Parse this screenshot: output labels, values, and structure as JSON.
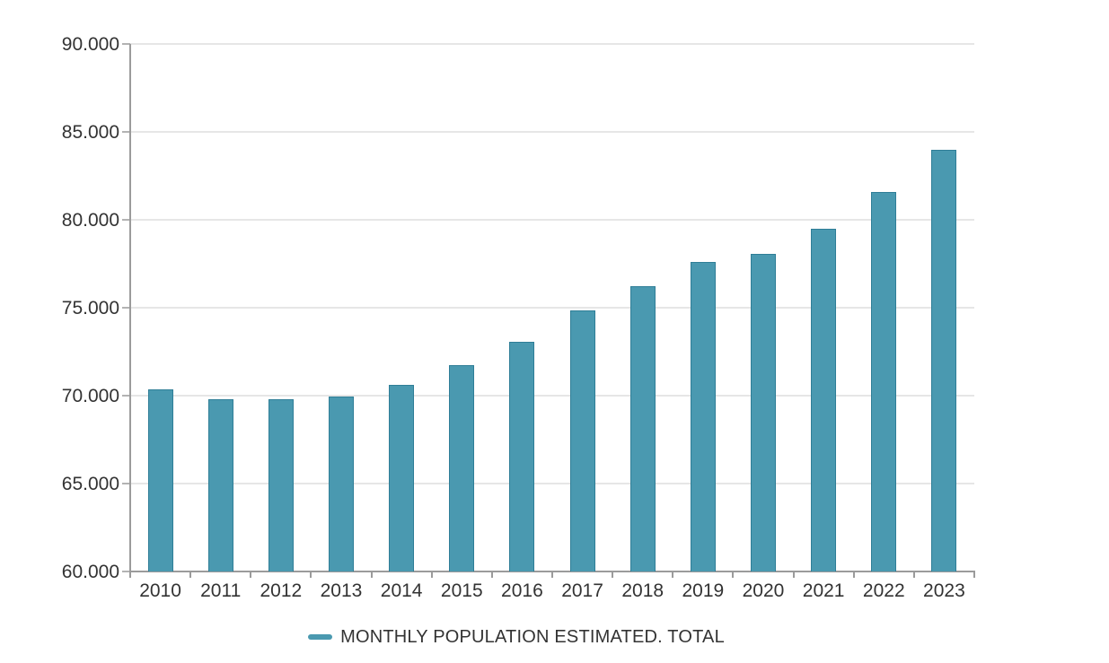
{
  "chart_data": {
    "type": "bar",
    "categories": [
      "2010",
      "2011",
      "2012",
      "2013",
      "2014",
      "2015",
      "2016",
      "2017",
      "2018",
      "2019",
      "2020",
      "2021",
      "2022",
      "2023"
    ],
    "series": [
      {
        "name": "MONTHLY POPULATION ESTIMATED. TOTAL",
        "values": [
          70350,
          69800,
          69800,
          69950,
          70600,
          71750,
          73050,
          74850,
          76200,
          77600,
          78050,
          79500,
          81600,
          84000
        ]
      }
    ],
    "ylim": [
      60000,
      90000
    ],
    "yticks": [
      60000,
      65000,
      70000,
      75000,
      80000,
      85000,
      90000
    ],
    "ytick_labels": [
      "60.000",
      "65.000",
      "70.000",
      "75.000",
      "80.000",
      "85.000",
      "90.000"
    ],
    "xlabel": "",
    "ylabel": "",
    "grid": "horizontal",
    "legend_position": "bottom-center",
    "colors": {
      "bar_fill": "#4a99b0",
      "bar_border": "#2f7e97",
      "gridline": "#e6e6e6",
      "axis": "#9b9b9b",
      "text": "#333333"
    }
  }
}
